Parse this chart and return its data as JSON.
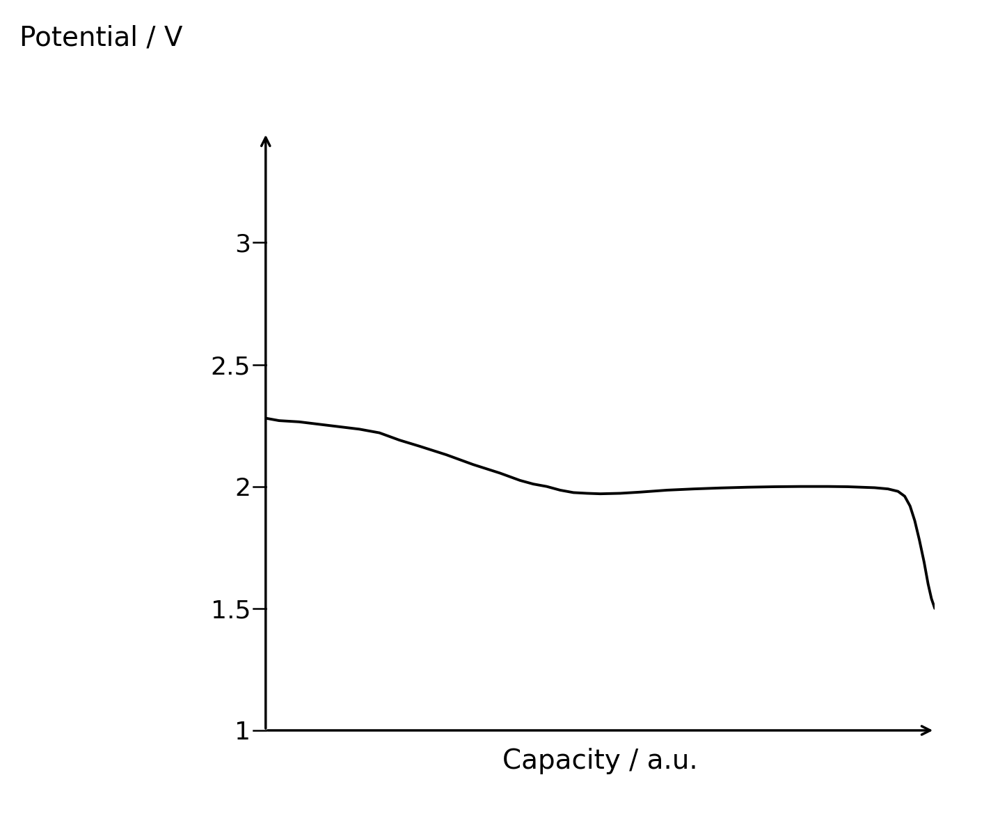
{
  "ylabel": "Potential / V",
  "xlabel": "Capacity / a.u.",
  "yticks": [
    1,
    1.5,
    2,
    2.5,
    3
  ],
  "ylim": [
    1.0,
    3.45
  ],
  "xlim": [
    0.0,
    1.0
  ],
  "line_color": "#000000",
  "line_width": 2.8,
  "background_color": "#ffffff",
  "ylabel_fontsize": 28,
  "xlabel_fontsize": 28,
  "tick_fontsize": 26,
  "arrow_lw": 2.5,
  "arrow_mutation_scale": 22,
  "curve_x": [
    0.0,
    0.02,
    0.05,
    0.08,
    0.11,
    0.14,
    0.17,
    0.2,
    0.23,
    0.27,
    0.31,
    0.35,
    0.38,
    0.4,
    0.42,
    0.44,
    0.46,
    0.48,
    0.5,
    0.53,
    0.56,
    0.6,
    0.64,
    0.68,
    0.72,
    0.76,
    0.8,
    0.84,
    0.87,
    0.89,
    0.91,
    0.93,
    0.945,
    0.955,
    0.963,
    0.97,
    0.977,
    0.984,
    0.99,
    0.995,
    1.0
  ],
  "curve_y": [
    2.28,
    2.27,
    2.265,
    2.255,
    2.245,
    2.235,
    2.22,
    2.19,
    2.165,
    2.13,
    2.09,
    2.055,
    2.025,
    2.01,
    2.0,
    1.985,
    1.975,
    1.972,
    1.97,
    1.972,
    1.977,
    1.985,
    1.99,
    1.994,
    1.997,
    1.999,
    2.0,
    2.0,
    1.999,
    1.997,
    1.995,
    1.99,
    1.98,
    1.96,
    1.92,
    1.86,
    1.78,
    1.69,
    1.6,
    1.54,
    1.5
  ]
}
